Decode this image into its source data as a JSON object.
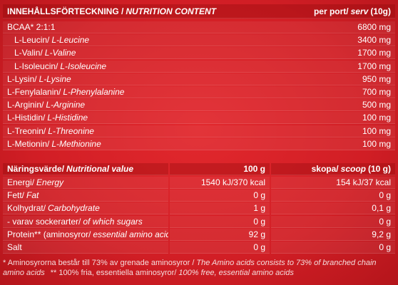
{
  "header": {
    "title_sv": "INNEHÅLLSFÖRTECKNING /",
    "title_en": "NUTRITION CONTENT",
    "serving_sv": "per port/",
    "serving_en": "serv",
    "serving_suffix": "(10g)"
  },
  "amino_rows": [
    {
      "sv": "BCAA* 2:1:1",
      "value": "6800 mg"
    },
    {
      "sv": "L-Leucin/",
      "en": "L-Leucine",
      "value": "3400 mg"
    },
    {
      "sv": "L-Valin/",
      "en": "L-Valine",
      "value": "1700 mg"
    },
    {
      "sv": "L-Isoleucin/",
      "en": "L-Isoleucine",
      "value": "1700 mg"
    },
    {
      "sv": "L-Lysin/",
      "en": "L-Lysine",
      "value": "950 mg"
    },
    {
      "sv": "L-Fenylalanin/",
      "en": "L-Phenylalanine",
      "value": "700 mg"
    },
    {
      "sv": "L-Arginin/",
      "en": "L-Arginine",
      "value": "500 mg"
    },
    {
      "sv": "L-Histidin/",
      "en": "L-Histidine",
      "value": "100 mg"
    },
    {
      "sv": "L-Treonin/",
      "en": "L-Threonine",
      "value": "100 mg"
    },
    {
      "sv": "L-Metionin/",
      "en": "L-Methionine",
      "value": "100 mg"
    }
  ],
  "nutrition_header": {
    "sv": "Näringsvärde/",
    "en": "Nutritional value",
    "per100": "100 g",
    "scoop_sv": "skopa/",
    "scoop_en": "scoop",
    "scoop_suffix": "(10 g)"
  },
  "nutrition_rows": [
    {
      "sv": "Energi/",
      "en": "Energy",
      "per100": "1540 kJ/370 kcal",
      "scoop": "154 kJ/37 kcal"
    },
    {
      "sv": "Fett/",
      "en": "Fat",
      "per100": "0 g",
      "scoop": "0 g"
    },
    {
      "sv": "Kolhydrat/",
      "en": "Carbohydrate",
      "per100": "1 g",
      "scoop": "0,1 g"
    },
    {
      "sv": "- varav sockerarter/",
      "en": "of which sugars",
      "per100": "0 g",
      "scoop": "0 g"
    },
    {
      "sv": "Protein** (aminosyror/",
      "en": "essential amino acids",
      "suffix": ")",
      "per100": "92 g",
      "scoop": "9,2 g"
    },
    {
      "sv": "Salt",
      "per100": "0 g",
      "scoop": "0 g"
    }
  ],
  "footnote": {
    "note1_sv": "* Aminosyrorna består till 73% av grenade aminosyror /",
    "note1_en": "The Amino acids consists to 73% of branched chain amino acids",
    "note2_sv": "** 100% fria, essentiella aminosyror/",
    "note2_en": "100% free, essential amino acids"
  }
}
